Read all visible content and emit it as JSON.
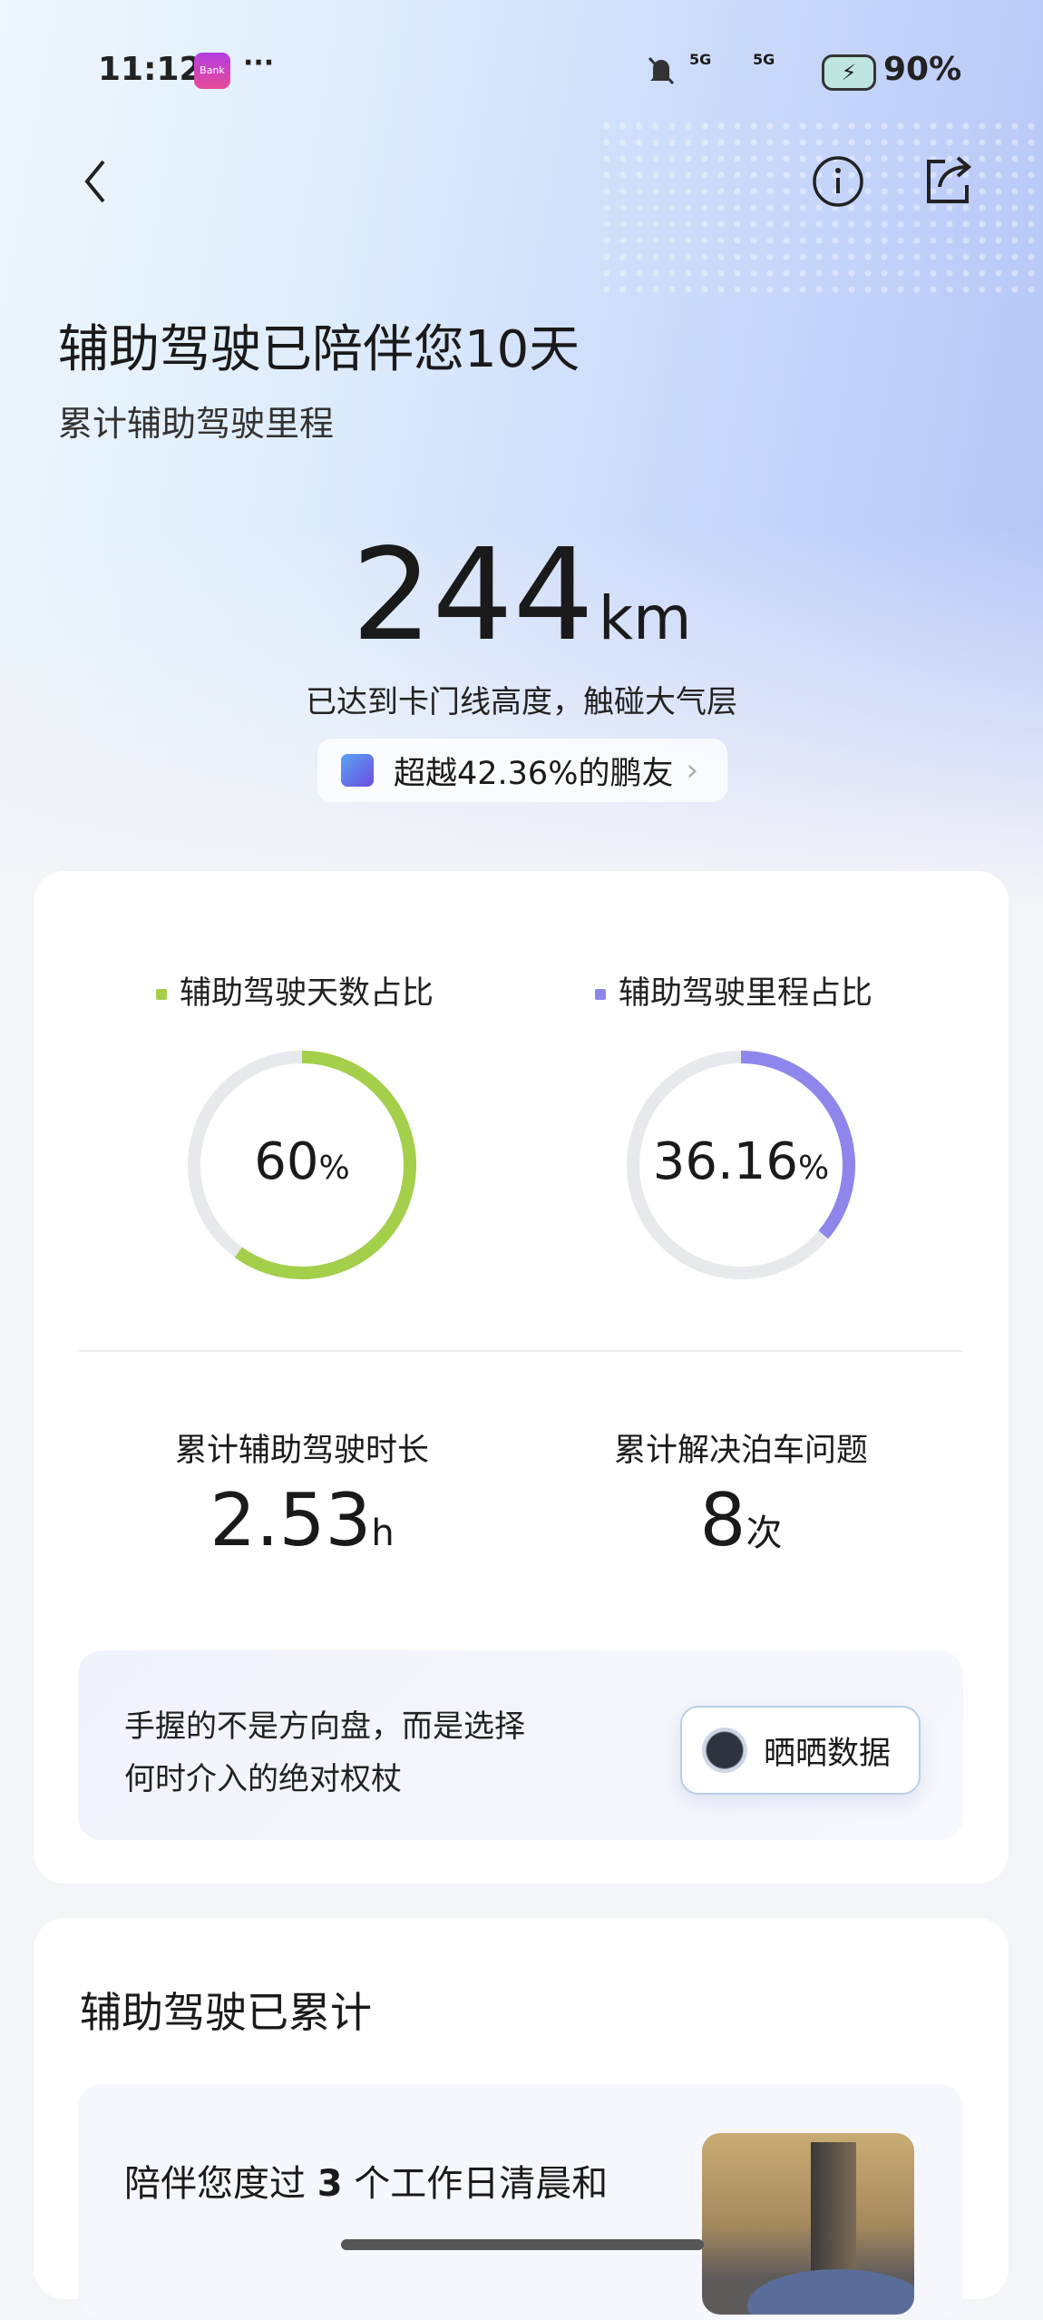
{
  "status_bar": {
    "time": "11:12",
    "app_badge": "Bank",
    "more": "···",
    "network1": "5G",
    "network2": "5G",
    "battery": "90%"
  },
  "header": {
    "back_icon": "chevron-left-icon",
    "info_icon": "info-circle-icon",
    "share_icon": "share-icon"
  },
  "hero": {
    "title": "辅助驾驶已陪伴您10天",
    "subtitle": "累计辅助驾驶里程",
    "distance": "244",
    "unit": "km",
    "caption": "已达到卡门线高度，触碰大气层",
    "rank_label": "超越42.36%的鹏友"
  },
  "ratios": {
    "days": {
      "label": "辅助驾驶天数占比",
      "value": "60",
      "suffix": "%",
      "fraction": 0.6,
      "color": "#a3cf4a"
    },
    "mileage": {
      "label": "辅助驾驶里程占比",
      "value": "36.16",
      "suffix": "%",
      "fraction": 0.3616,
      "color": "#8f86ec"
    },
    "track_color": "#e8e9ec"
  },
  "stats": {
    "duration": {
      "label": "累计辅助驾驶时长",
      "value": "2.53",
      "unit": "h"
    },
    "parking": {
      "label": "累计解决泊车问题",
      "value": "8",
      "unit": "次"
    }
  },
  "quote": {
    "line1": "手握的不是方向盘，而是选择",
    "line2": "何时介入的绝对权杖",
    "share_button": "晒晒数据"
  },
  "section2": {
    "title": "辅助驾驶已累计",
    "item_text_pre": "陪伴您度过 ",
    "item_count": "3",
    "item_text_post": " 个工作日清晨和"
  }
}
